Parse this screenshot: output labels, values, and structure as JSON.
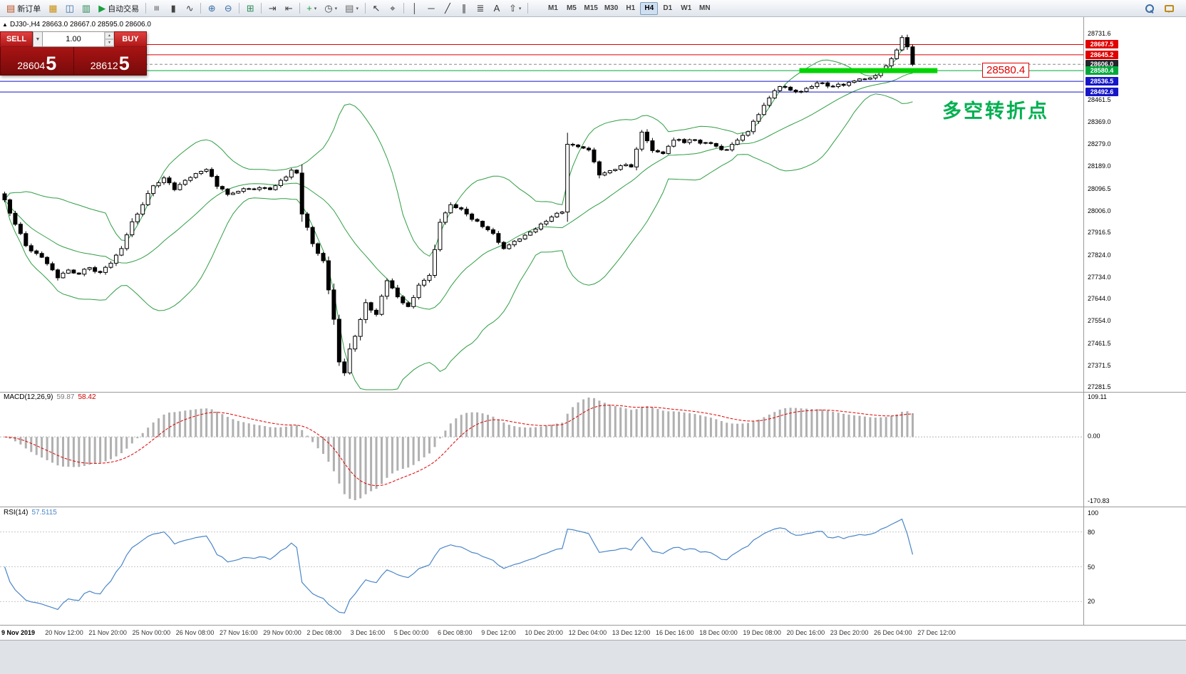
{
  "toolbar": {
    "new_order": "新订单",
    "autotrade": "自动交易",
    "window_icons": [
      {
        "name": "market-watch-icon",
        "glyph": "▦",
        "color": "#c89010"
      },
      {
        "name": "data-window-icon",
        "glyph": "◫",
        "color": "#3a6ea5"
      },
      {
        "name": "navigator-icon",
        "glyph": "▥",
        "color": "#2e8b57"
      }
    ],
    "tool_icons": [
      {
        "name": "separator"
      },
      {
        "name": "bar-chart-mode-icon",
        "glyph": "≡",
        "color": "#444444"
      },
      {
        "name": "candlestick-mode-icon",
        "glyph": "▮",
        "color": "#444444"
      },
      {
        "name": "line-chart-mode-icon",
        "glyph": "∿",
        "color": "#444444"
      },
      {
        "name": "separator"
      },
      {
        "name": "zoom-in-icon",
        "glyph": "⊕",
        "color": "#3a6ea5"
      },
      {
        "name": "zoom-out-icon",
        "glyph": "⊖",
        "color": "#3a6ea5"
      },
      {
        "name": "separator"
      },
      {
        "name": "tile-windows-icon",
        "glyph": "⊞",
        "color": "#2e8b57"
      },
      {
        "name": "separator"
      },
      {
        "name": "auto-scroll-icon",
        "glyph": "⇥",
        "color": "#444444"
      },
      {
        "name": "chart-shift-icon",
        "glyph": "⇤",
        "color": "#444444"
      },
      {
        "name": "separator"
      },
      {
        "name": "indicators-icon",
        "glyph": "+",
        "color": "#1a9e3f",
        "caret": true
      },
      {
        "name": "periods-icon",
        "glyph": "◷",
        "color": "#444444",
        "caret": true
      },
      {
        "name": "templates-icon",
        "glyph": "▤",
        "color": "#666666",
        "caret": true
      },
      {
        "name": "separator"
      },
      {
        "name": "cursor-icon",
        "glyph": "↖",
        "color": "#333333"
      },
      {
        "name": "crosshair-icon",
        "glyph": "⌖",
        "color": "#333333"
      },
      {
        "name": "separator"
      },
      {
        "name": "vertical-line-icon",
        "glyph": "│",
        "color": "#333333"
      },
      {
        "name": "horizontal-line-icon",
        "glyph": "─",
        "color": "#333333"
      },
      {
        "name": "trendline-icon",
        "glyph": "╱",
        "color": "#333333"
      },
      {
        "name": "channel-icon",
        "glyph": "∥",
        "color": "#333333"
      },
      {
        "name": "fibonacci-icon",
        "glyph": "≣",
        "color": "#333333"
      },
      {
        "name": "text-icon",
        "glyph": "A",
        "color": "#333333"
      },
      {
        "name": "arrows-icon",
        "glyph": "⇧",
        "color": "#333333",
        "caret": true
      },
      {
        "name": "separator"
      }
    ],
    "timeframes": [
      "M1",
      "M5",
      "M15",
      "M30",
      "H1",
      "H4",
      "D1",
      "W1",
      "MN"
    ],
    "active_timeframe": "H4",
    "right_icons": [
      "search-icon",
      "chat-icon"
    ]
  },
  "trade_panel": {
    "sell_label": "SELL",
    "buy_label": "BUY",
    "lot": "1.00",
    "sell_price": "28604",
    "sell_price_big": "5",
    "buy_price": "28612",
    "buy_price_big": "5"
  },
  "chart_data": {
    "type": "candlestick",
    "symbol": "DJ30-",
    "timeframe": "H4",
    "title": "DJ30-,H4 28663.0 28667.0 28595.0 28606.0",
    "ohlc_line": {
      "open": 28663.0,
      "high": 28667.0,
      "low": 28595.0,
      "close": 28606.0
    },
    "ylim": [
      27262,
      28800
    ],
    "price_ticks": [
      28731.6,
      28461.5,
      28369.0,
      28279.0,
      28189.0,
      28096.5,
      28006.0,
      27916.5,
      27824.0,
      27734.0,
      27644.0,
      27554.0,
      27461.5,
      27371.5,
      27281.5
    ],
    "levels": [
      {
        "price": 28687.5,
        "color": "#e00000",
        "tag": "28687.5",
        "tag_bg": "#e00000",
        "style": "solid"
      },
      {
        "price": 28645.2,
        "color": "#e00000",
        "tag": "28645.2",
        "tag_bg": "#e00000",
        "style": "solid"
      },
      {
        "price": 28606.0,
        "color": "#8a8a8a",
        "tag": "28606.0",
        "tag_bg": "#24262b",
        "style": "dash"
      },
      {
        "price": 28580.4,
        "color": "#00a83c",
        "tag": "28580.4",
        "tag_bg": "#00a83c",
        "style": "solid"
      },
      {
        "price": 28536.5,
        "color": "#1616c8",
        "tag": "28536.5",
        "tag_bg": "#1616c8",
        "style": "solid"
      },
      {
        "price": 28492.6,
        "color": "#1616c8",
        "tag": "28492.6",
        "tag_bg": "#1616c8",
        "style": "solid"
      }
    ],
    "highlight_segment": {
      "price": 28580.4,
      "x_from_candle": 150,
      "x_to_candle": 176,
      "label": "28580.4",
      "color": "#00d400"
    },
    "annotation": {
      "text": "多空转折点",
      "color": "#00b050"
    },
    "candle_count": 172,
    "waypoints": [
      [
        0,
        28050
      ],
      [
        2,
        27950
      ],
      [
        4,
        27862
      ],
      [
        6,
        27830
      ],
      [
        8,
        27788
      ],
      [
        10,
        27730
      ],
      [
        12,
        27762
      ],
      [
        14,
        27745
      ],
      [
        16,
        27772
      ],
      [
        18,
        27752
      ],
      [
        20,
        27790
      ],
      [
        22,
        27850
      ],
      [
        24,
        27960
      ],
      [
        26,
        28030
      ],
      [
        28,
        28108
      ],
      [
        30,
        28140
      ],
      [
        32,
        28092
      ],
      [
        34,
        28130
      ],
      [
        36,
        28158
      ],
      [
        38,
        28175
      ],
      [
        40,
        28105
      ],
      [
        42,
        28072
      ],
      [
        44,
        28085
      ],
      [
        46,
        28095
      ],
      [
        48,
        28100
      ],
      [
        50,
        28092
      ],
      [
        52,
        28130
      ],
      [
        54,
        28172
      ],
      [
        55,
        28160
      ],
      [
        56,
        27992
      ],
      [
        58,
        27870
      ],
      [
        60,
        27800
      ],
      [
        62,
        27560
      ],
      [
        63,
        27385
      ],
      [
        64,
        27340
      ],
      [
        65,
        27438
      ],
      [
        66,
        27490
      ],
      [
        68,
        27628
      ],
      [
        70,
        27580
      ],
      [
        72,
        27718
      ],
      [
        74,
        27652
      ],
      [
        76,
        27612
      ],
      [
        78,
        27700
      ],
      [
        80,
        27740
      ],
      [
        82,
        27958
      ],
      [
        84,
        28030
      ],
      [
        86,
        28012
      ],
      [
        88,
        27970
      ],
      [
        90,
        27940
      ],
      [
        92,
        27912
      ],
      [
        94,
        27850
      ],
      [
        96,
        27880
      ],
      [
        98,
        27905
      ],
      [
        100,
        27930
      ],
      [
        102,
        27962
      ],
      [
        104,
        27995
      ],
      [
        105,
        28000
      ],
      [
        106,
        28278
      ],
      [
        108,
        28268
      ],
      [
        110,
        28255
      ],
      [
        112,
        28152
      ],
      [
        114,
        28170
      ],
      [
        116,
        28190
      ],
      [
        118,
        28185
      ],
      [
        120,
        28328
      ],
      [
        122,
        28252
      ],
      [
        124,
        28240
      ],
      [
        126,
        28295
      ],
      [
        128,
        28285
      ],
      [
        130,
        28295
      ],
      [
        132,
        28285
      ],
      [
        134,
        28270
      ],
      [
        136,
        28255
      ],
      [
        138,
        28295
      ],
      [
        140,
        28330
      ],
      [
        142,
        28400
      ],
      [
        144,
        28468
      ],
      [
        146,
        28515
      ],
      [
        148,
        28500
      ],
      [
        150,
        28495
      ],
      [
        152,
        28515
      ],
      [
        154,
        28530
      ],
      [
        156,
        28515
      ],
      [
        158,
        28520
      ],
      [
        160,
        28538
      ],
      [
        162,
        28545
      ],
      [
        164,
        28560
      ],
      [
        166,
        28600
      ],
      [
        168,
        28665
      ],
      [
        169,
        28716
      ],
      [
        170,
        28678
      ],
      [
        171,
        28606
      ]
    ],
    "indicators": {
      "bollinger": {
        "period": 20,
        "deviation": 2,
        "color": "#2f9e44"
      },
      "macd": {
        "title": "MACD(12,26,9)",
        "fast": 12,
        "slow": 26,
        "signal": 9,
        "v1": "59.87",
        "v2": "58.42",
        "axis_labels": [
          "109.11",
          "0.00",
          "-170.83"
        ]
      },
      "rsi": {
        "title": "RSI(14)",
        "period": 14,
        "value_text": "57.5115",
        "axis_labels": [
          100,
          80,
          50,
          20
        ]
      }
    },
    "time_labels": [
      "9 Nov 2019",
      "20 Nov 12:00",
      "21 Nov 20:00",
      "25 Nov 00:00",
      "26 Nov 08:00",
      "27 Nov 16:00",
      "29 Nov 00:00",
      "2 Dec 08:00",
      "3 Dec 16:00",
      "5 Dec 00:00",
      "6 Dec 08:00",
      "9 Dec 12:00",
      "10 Dec 20:00",
      "12 Dec 04:00",
      "13 Dec 12:00",
      "16 Dec 16:00",
      "18 Dec 00:00",
      "19 Dec 08:00",
      "20 Dec 16:00",
      "23 Dec 20:00",
      "26 Dec 04:00",
      "27 Dec 12:00"
    ]
  }
}
